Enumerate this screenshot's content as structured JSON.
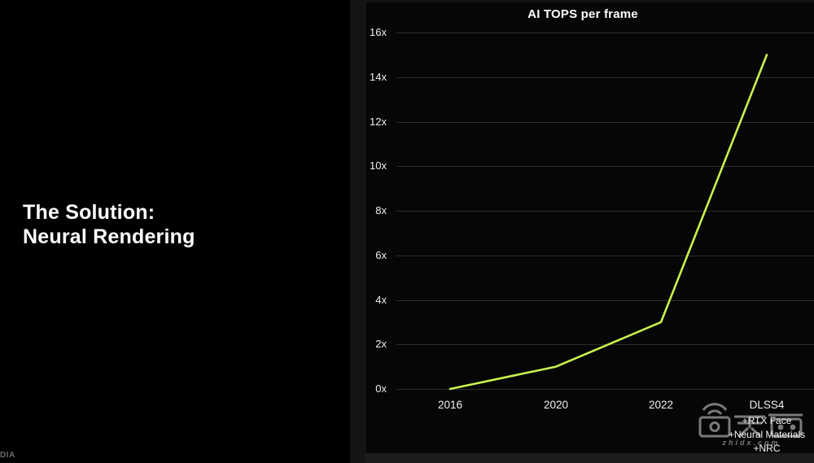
{
  "slide": {
    "title_lines": [
      "The Solution:",
      "Neural Rendering"
    ],
    "brand_fragment": "DIA"
  },
  "watermark": {
    "logo_icon": "zhidx-logo",
    "text": "zhidx.com"
  },
  "chart_data": {
    "type": "line",
    "title": "AI TOPS per frame",
    "categories": [
      "2016",
      "2020",
      "2022",
      "DLSS4"
    ],
    "values": [
      0,
      1,
      3,
      15
    ],
    "last_category_sublabels": [
      "+RTX Face",
      "+Neural Materials",
      "+NRC"
    ],
    "y_ticks": [
      "16x",
      "14x",
      "12x",
      "10x",
      "8x",
      "6x",
      "4x",
      "2x",
      "0x"
    ],
    "ylim": [
      0,
      16
    ],
    "grid": "horizontal",
    "legend": "none",
    "line_color": "#c9f14e",
    "grid_color": "#2d2d2d",
    "label_color": "#f0f0f0",
    "title_color": "#ffffff",
    "background_color": "#060606"
  }
}
